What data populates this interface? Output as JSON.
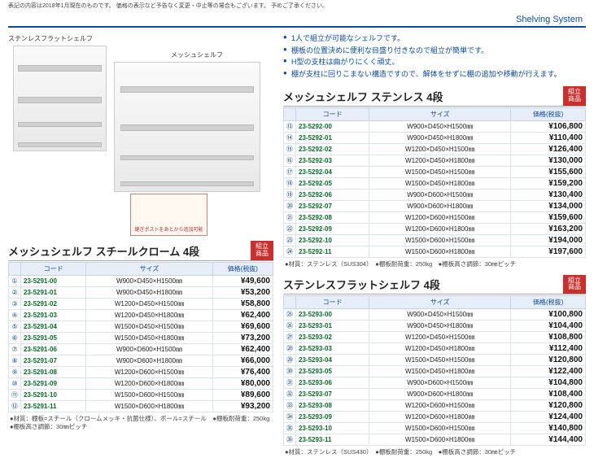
{
  "top_note": "表記の内容は2018年1月現在のものです。\n価格の表示など予告なく変更・中止等の場合もございます。\n予めご了承ください。",
  "header": "Shelving System",
  "left_photo": {
    "label_flat": "ステンレスフラットシェルフ",
    "label_mesh": "メッシュシェルフ",
    "diagram_caption": "継ぎポストをあとから追加可能"
  },
  "bullets": [
    "1人で組立が可能なシェルフです。",
    "棚板の位置決めに便利な目盛り付きなので組立が簡単です。",
    "H型の支柱は曲がりにくく頑丈。",
    "棚が支柱に回りこまない構造ですので、解体をせずに棚の追加や移動が行えます。"
  ],
  "badge": "組立\n商品",
  "table_headers": {
    "code": "コード",
    "size": "サイズ",
    "price": "価格(税抜)"
  },
  "sections": [
    {
      "id": "steel",
      "title": "メッシュシェルフ スチールクローム 4段",
      "start_index": 1,
      "rows": [
        {
          "code": "23-5291-00",
          "size": "W900×D450×H1500㎜",
          "price": "¥49,600"
        },
        {
          "code": "23-5291-01",
          "size": "W900×D450×H1800㎜",
          "price": "¥53,200"
        },
        {
          "code": "23-5291-02",
          "size": "W1200×D450×H1500㎜",
          "price": "¥58,800"
        },
        {
          "code": "23-5291-03",
          "size": "W1200×D450×H1800㎜",
          "price": "¥62,400"
        },
        {
          "code": "23-5291-04",
          "size": "W1500×D450×H1500㎜",
          "price": "¥69,600"
        },
        {
          "code": "23-5291-05",
          "size": "W1500×D450×H1800㎜",
          "price": "¥73,200"
        },
        {
          "code": "23-5291-06",
          "size": "W900×D600×H1500㎜",
          "price": "¥62,400"
        },
        {
          "code": "23-5291-07",
          "size": "W900×D600×H1800㎜",
          "price": "¥66,000"
        },
        {
          "code": "23-5291-08",
          "size": "W1200×D600×H1500㎜",
          "price": "¥76,400"
        },
        {
          "code": "23-5291-09",
          "size": "W1200×D600×H1800㎜",
          "price": "¥80,000"
        },
        {
          "code": "23-5291-10",
          "size": "W1500×D600×H1500㎜",
          "price": "¥89,600"
        },
        {
          "code": "23-5291-11",
          "size": "W1500×D600×H1800㎜",
          "price": "¥93,200"
        }
      ],
      "note": "●材質：棚板=スチール（クロームメッキ・抗菌仕様）、ポール=スチール　●棚板耐荷重：250kg\n●棚板高さ調節：30㎜ピッチ"
    },
    {
      "id": "sus-mesh",
      "title": "メッシュシェルフ ステンレス 4段",
      "start_index": 13,
      "rows": [
        {
          "code": "23-5292-00",
          "size": "W900×D450×H1500㎜",
          "price": "¥106,800"
        },
        {
          "code": "23-5292-01",
          "size": "W900×D450×H1800㎜",
          "price": "¥110,400"
        },
        {
          "code": "23-5292-02",
          "size": "W1200×D450×H1500㎜",
          "price": "¥126,400"
        },
        {
          "code": "23-5292-03",
          "size": "W1200×D450×H1800㎜",
          "price": "¥130,000"
        },
        {
          "code": "23-5292-04",
          "size": "W1500×D450×H1500㎜",
          "price": "¥155,600"
        },
        {
          "code": "23-5292-05",
          "size": "W1500×D450×H1800㎜",
          "price": "¥159,200"
        },
        {
          "code": "23-5292-06",
          "size": "W900×D600×H1500㎜",
          "price": "¥130,400"
        },
        {
          "code": "23-5292-07",
          "size": "W900×D600×H1800㎜",
          "price": "¥134,000"
        },
        {
          "code": "23-5292-08",
          "size": "W1200×D600×H1500㎜",
          "price": "¥159,600"
        },
        {
          "code": "23-5292-09",
          "size": "W1200×D600×H1800㎜",
          "price": "¥163,200"
        },
        {
          "code": "23-5292-10",
          "size": "W1500×D600×H1500㎜",
          "price": "¥194,000"
        },
        {
          "code": "23-5292-11",
          "size": "W1500×D600×H1800㎜",
          "price": "¥197,600"
        }
      ],
      "note": "●材質：ステンレス（SUS304）　●棚板耐荷重：250kg　●棚板高さ調節：30㎜ピッチ"
    },
    {
      "id": "sus-flat",
      "title": "ステンレスフラットシェルフ 4段",
      "start_index": 25,
      "rows": [
        {
          "code": "23-5293-00",
          "size": "W900×D450×H1500㎜",
          "price": "¥100,800"
        },
        {
          "code": "23-5293-01",
          "size": "W900×D450×H1800㎜",
          "price": "¥104,400"
        },
        {
          "code": "23-5293-02",
          "size": "W1200×D450×H1500㎜",
          "price": "¥108,800"
        },
        {
          "code": "23-5293-03",
          "size": "W1200×D450×H1800㎜",
          "price": "¥112,400"
        },
        {
          "code": "23-5293-04",
          "size": "W1500×D450×H1500㎜",
          "price": "¥120,800"
        },
        {
          "code": "23-5293-05",
          "size": "W1500×D450×H1800㎜",
          "price": "¥122,400"
        },
        {
          "code": "23-5293-06",
          "size": "W900×D600×H1500㎜",
          "price": "¥104,800"
        },
        {
          "code": "23-5293-07",
          "size": "W900×D600×H1800㎜",
          "price": "¥108,400"
        },
        {
          "code": "23-5293-08",
          "size": "W1200×D600×H1500㎜",
          "price": "¥120,800"
        },
        {
          "code": "23-5293-09",
          "size": "W1200×D600×H1800㎜",
          "price": "¥124,400"
        },
        {
          "code": "23-5293-10",
          "size": "W1500×D600×H1500㎜",
          "price": "¥140,800"
        },
        {
          "code": "23-5293-11",
          "size": "W1500×D600×H1800㎜",
          "price": "¥144,400"
        }
      ],
      "note": "●材質：ステンレス（SUS430）　●棚板耐荷重：250kg　●棚板高さ調節：30㎜ピッチ"
    }
  ],
  "circled": [
    "①",
    "②",
    "③",
    "④",
    "⑤",
    "⑥",
    "⑦",
    "⑧",
    "⑨",
    "⑩",
    "⑪",
    "⑫",
    "⑬",
    "⑭",
    "⑮",
    "⑯",
    "⑰",
    "⑱",
    "⑲",
    "⑳",
    "㉑",
    "㉒",
    "㉓",
    "㉔",
    "㉕",
    "㉖",
    "㉗",
    "㉘",
    "㉙",
    "㉚",
    "㉛",
    "㉜",
    "㉝",
    "㉞",
    "㉟",
    "㊱"
  ]
}
